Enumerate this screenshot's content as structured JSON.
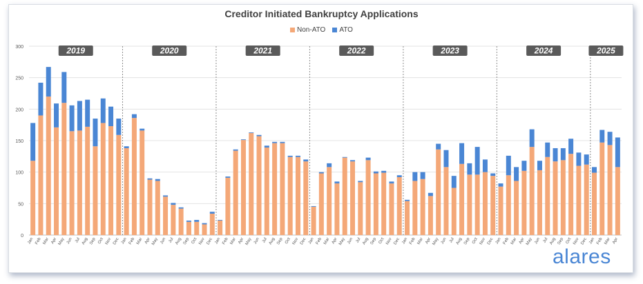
{
  "brand": {
    "logo_text": "alares"
  },
  "colors": {
    "non_ato": "#f4a878",
    "ato": "#4a86d4",
    "year_badge": "#5a5a5a"
  },
  "chart_data": {
    "type": "bar",
    "stacked": true,
    "title": "Creditor Initiated Bankruptcy Applications",
    "xlabel": "",
    "ylabel": "",
    "ylim": [
      0,
      300
    ],
    "yticks": [
      0,
      50,
      100,
      150,
      200,
      250,
      300
    ],
    "grid": true,
    "legend_position": "top-center",
    "years": [
      "2019",
      "2020",
      "2021",
      "2022",
      "2023",
      "2024",
      "2025"
    ],
    "categories": [
      "Jan",
      "Feb",
      "Mar",
      "Apr",
      "May",
      "Jun",
      "Jul",
      "Aug",
      "Sep",
      "Oct",
      "Nov",
      "Dec",
      "Jan",
      "Feb",
      "Mar",
      "Apr",
      "May",
      "Jun",
      "Jul",
      "Aug",
      "Sep",
      "Oct",
      "Nov",
      "Dec",
      "Jan",
      "Feb",
      "Mar",
      "Apr",
      "May",
      "Jun",
      "Jul",
      "Aug",
      "Sep",
      "Oct",
      "Nov",
      "Dec",
      "Jan",
      "Feb",
      "Mar",
      "Apr",
      "May",
      "Jun",
      "Jul",
      "Aug",
      "Sep",
      "Oct",
      "Nov",
      "Dec",
      "Jan",
      "Feb",
      "Mar",
      "Apr",
      "May",
      "Jun",
      "Jul",
      "Aug",
      "Sep",
      "Oct",
      "Nov",
      "Dec",
      "Jan",
      "Feb",
      "Mar",
      "Apr",
      "May",
      "Jun",
      "Jul",
      "Aug",
      "Sep",
      "Oct",
      "Nov",
      "Dec",
      "Jan",
      "Feb",
      "Mar",
      "Apr"
    ],
    "series": [
      {
        "name": "Non-ATO",
        "values": [
          118,
          190,
          220,
          171,
          210,
          165,
          166,
          172,
          141,
          178,
          173,
          159,
          138,
          186,
          166,
          88,
          86,
          61,
          48,
          42,
          21,
          21,
          17,
          34,
          23,
          91,
          134,
          151,
          162,
          157,
          139,
          146,
          146,
          124,
          124,
          117,
          45,
          98,
          108,
          82,
          123,
          117,
          84,
          119,
          98,
          99,
          82,
          92,
          54,
          86,
          89,
          62,
          136,
          108,
          75,
          113,
          96,
          96,
          100,
          94,
          77,
          95,
          86,
          102,
          140,
          103,
          124,
          117,
          119,
          129,
          110,
          112,
          99,
          147,
          143,
          108
        ]
      },
      {
        "name": "ATO",
        "values": [
          60,
          52,
          47,
          38,
          49,
          41,
          47,
          43,
          44,
          39,
          31,
          26,
          3,
          6,
          3,
          2,
          3,
          2,
          3,
          2,
          2,
          3,
          2,
          3,
          1,
          2,
          2,
          1,
          1,
          2,
          3,
          2,
          2,
          2,
          2,
          3,
          1,
          2,
          6,
          3,
          1,
          2,
          2,
          4,
          3,
          3,
          3,
          3,
          2,
          14,
          11,
          5,
          9,
          27,
          19,
          33,
          18,
          44,
          20,
          4,
          5,
          31,
          22,
          16,
          28,
          15,
          23,
          21,
          19,
          24,
          21,
          16,
          9,
          20,
          21,
          47
        ]
      }
    ]
  }
}
